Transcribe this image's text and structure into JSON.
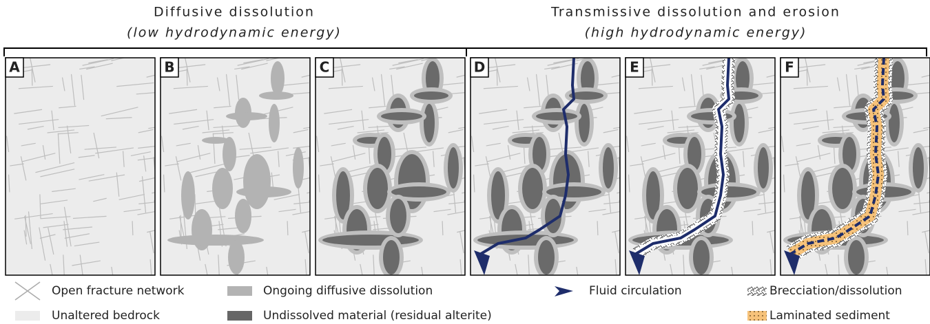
{
  "headers": [
    {
      "title": "Diffusive dissolution",
      "subtitle": "(low hydrodynamic energy)"
    },
    {
      "title": "Transmissive dissolution and erosion",
      "subtitle": "(high hydrodynamic energy)"
    }
  ],
  "panels": [
    "A",
    "B",
    "C",
    "D",
    "E",
    "F"
  ],
  "legend": [
    "Open fracture network",
    "Unaltered bedrock",
    "Ongoing diffusive dissolution",
    "Undissolved material (residual alterite)",
    "Fluid circulation",
    "Brecciation/dissolution",
    "Laminated sediment"
  ]
}
